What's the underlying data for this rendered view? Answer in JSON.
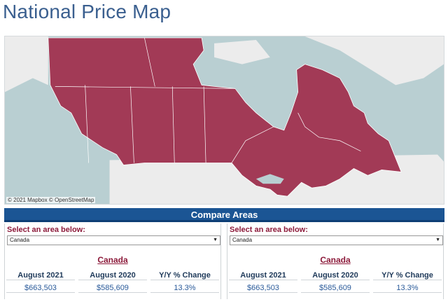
{
  "page": {
    "title": "National Price Map"
  },
  "map": {
    "attribution": "© 2021 Mapbox © OpenStreetMap",
    "colors": {
      "water": "#b9cfd2",
      "land": "#ececec",
      "region": "#a23a56",
      "border": "#ffffff"
    }
  },
  "compare": {
    "title": "Compare Areas",
    "panels": [
      {
        "select_label": "Select an area below:",
        "selected_area": "Canada",
        "area_title": "Canada",
        "columns": [
          {
            "header": "August 2021",
            "value": "$663,503"
          },
          {
            "header": "August 2020",
            "value": "$585,609"
          },
          {
            "header": "Y/Y % Change",
            "value": "13.3%"
          }
        ]
      },
      {
        "select_label": "Select an area below:",
        "selected_area": "Canada",
        "area_title": "Canada",
        "columns": [
          {
            "header": "August 2021",
            "value": "$663,503"
          },
          {
            "header": "August 2020",
            "value": "$585,609"
          },
          {
            "header": "Y/Y % Change",
            "value": "13.3%"
          }
        ]
      }
    ]
  }
}
